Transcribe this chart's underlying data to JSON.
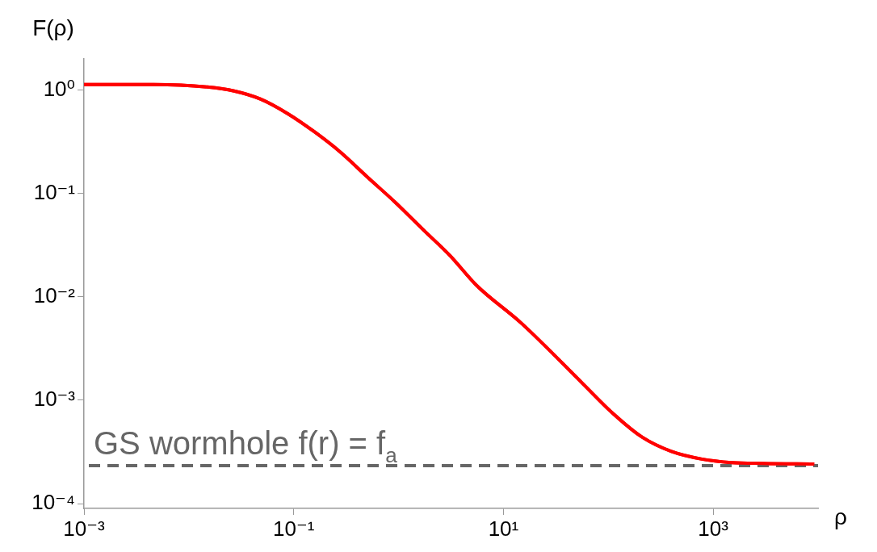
{
  "chart_data": {
    "type": "line",
    "xlabel": "ρ",
    "ylabel": "F(ρ)",
    "log": "xy",
    "grid": false,
    "legend": false,
    "marker": "none",
    "line_style": "solid",
    "x": [
      0.001,
      0.0046,
      0.015,
      0.027,
      0.048,
      0.088,
      0.16,
      0.28,
      0.52,
      0.93,
      1.7,
      3.1,
      5.5,
      15,
      57,
      110,
      210,
      400,
      780,
      1500,
      2900,
      9200
    ],
    "series": [
      {
        "color": "#ff0000",
        "values": [
          1.13,
          1.13,
          1.07,
          0.98,
          0.82,
          0.59,
          0.39,
          0.25,
          0.14,
          0.082,
          0.045,
          0.025,
          0.013,
          0.0055,
          0.00145,
          0.00075,
          0.00044,
          0.00032,
          0.00027,
          0.00025,
          0.000245,
          0.000242
        ]
      }
    ],
    "xlim": [
      0.001,
      10000
    ],
    "ylim": [
      9e-05,
      2
    ],
    "xticks": [
      {
        "value": 0.001,
        "label": "10⁻³"
      },
      {
        "value": 0.1,
        "label": "10⁻¹"
      },
      {
        "value": 10,
        "label": "10¹"
      },
      {
        "value": 1000,
        "label": "10³"
      }
    ],
    "yticks": [
      {
        "value": 0.0001,
        "label": "10⁻⁴"
      },
      {
        "value": 0.001,
        "label": "10⁻³"
      },
      {
        "value": 0.01,
        "label": "10⁻²"
      },
      {
        "value": 0.1,
        "label": "10⁻¹"
      },
      {
        "value": 1,
        "label": "10⁰"
      }
    ],
    "ref_lines": [
      {
        "axis": "y",
        "value": 0.000233,
        "label": "GS wormhole f(r) = f$_{a}$",
        "color": "#666666",
        "line_style": "dashed"
      }
    ]
  }
}
